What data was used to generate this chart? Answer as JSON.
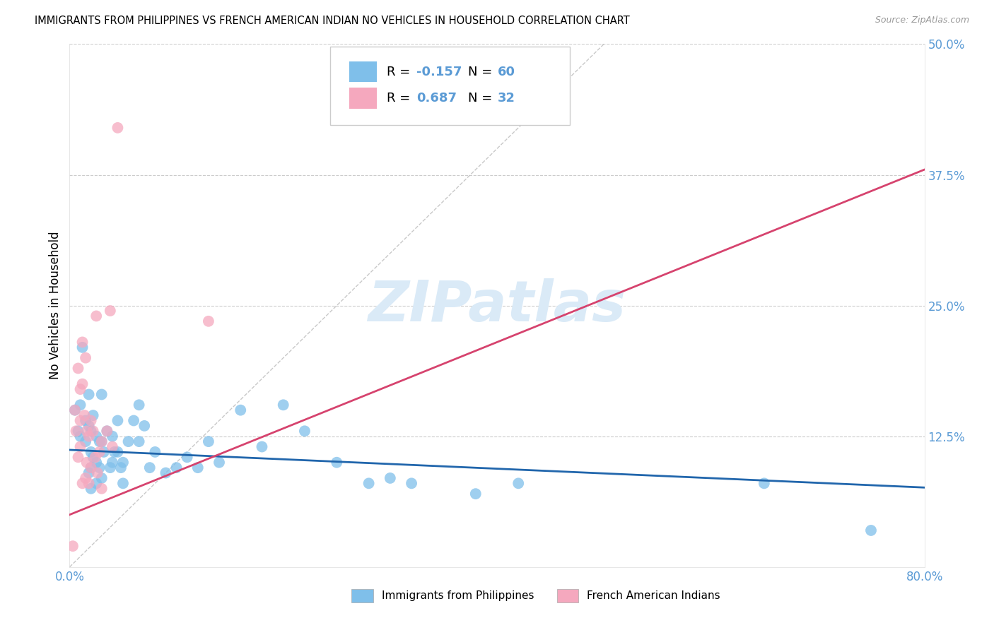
{
  "title": "IMMIGRANTS FROM PHILIPPINES VS FRENCH AMERICAN INDIAN NO VEHICLES IN HOUSEHOLD CORRELATION CHART",
  "source": "Source: ZipAtlas.com",
  "ylabel": "No Vehicles in Household",
  "xlim": [
    0,
    0.8
  ],
  "ylim": [
    0,
    0.5
  ],
  "xticks": [
    0.0,
    0.2,
    0.4,
    0.6,
    0.8
  ],
  "xticklabels": [
    "0.0%",
    "",
    "",
    "",
    "80.0%"
  ],
  "yticks": [
    0.0,
    0.125,
    0.25,
    0.375,
    0.5
  ],
  "yticklabels": [
    "",
    "12.5%",
    "25.0%",
    "37.5%",
    "50.0%"
  ],
  "blue_color": "#7fbfea",
  "pink_color": "#f5a8be",
  "blue_line_color": "#2166ac",
  "pink_line_color": "#d6436e",
  "axis_color": "#5b9bd5",
  "watermark": "ZIPatlas",
  "watermark_color": "#daeaf7",
  "grid_color": "#cccccc",
  "blue_scatter_x": [
    0.005,
    0.008,
    0.01,
    0.01,
    0.012,
    0.015,
    0.015,
    0.018,
    0.018,
    0.018,
    0.02,
    0.02,
    0.02,
    0.02,
    0.022,
    0.022,
    0.025,
    0.025,
    0.025,
    0.028,
    0.028,
    0.03,
    0.03,
    0.03,
    0.032,
    0.035,
    0.038,
    0.04,
    0.04,
    0.042,
    0.045,
    0.045,
    0.048,
    0.05,
    0.05,
    0.055,
    0.06,
    0.065,
    0.065,
    0.07,
    0.075,
    0.08,
    0.09,
    0.1,
    0.11,
    0.12,
    0.13,
    0.14,
    0.16,
    0.18,
    0.2,
    0.22,
    0.25,
    0.28,
    0.3,
    0.32,
    0.38,
    0.42,
    0.65,
    0.75
  ],
  "blue_scatter_y": [
    0.15,
    0.13,
    0.155,
    0.125,
    0.21,
    0.14,
    0.12,
    0.165,
    0.135,
    0.09,
    0.13,
    0.11,
    0.095,
    0.075,
    0.145,
    0.105,
    0.125,
    0.1,
    0.08,
    0.12,
    0.095,
    0.165,
    0.12,
    0.085,
    0.11,
    0.13,
    0.095,
    0.125,
    0.1,
    0.11,
    0.14,
    0.11,
    0.095,
    0.1,
    0.08,
    0.12,
    0.14,
    0.155,
    0.12,
    0.135,
    0.095,
    0.11,
    0.09,
    0.095,
    0.105,
    0.095,
    0.12,
    0.1,
    0.15,
    0.115,
    0.155,
    0.13,
    0.1,
    0.08,
    0.085,
    0.08,
    0.07,
    0.08,
    0.08,
    0.035
  ],
  "pink_scatter_x": [
    0.003,
    0.005,
    0.006,
    0.008,
    0.008,
    0.01,
    0.01,
    0.01,
    0.012,
    0.012,
    0.012,
    0.014,
    0.015,
    0.015,
    0.016,
    0.016,
    0.018,
    0.018,
    0.02,
    0.02,
    0.022,
    0.024,
    0.025,
    0.026,
    0.028,
    0.03,
    0.03,
    0.035,
    0.038,
    0.04,
    0.045,
    0.13
  ],
  "pink_scatter_y": [
    0.02,
    0.15,
    0.13,
    0.19,
    0.105,
    0.17,
    0.14,
    0.115,
    0.215,
    0.175,
    0.08,
    0.145,
    0.2,
    0.085,
    0.13,
    0.1,
    0.125,
    0.08,
    0.14,
    0.095,
    0.13,
    0.105,
    0.24,
    0.09,
    0.11,
    0.12,
    0.075,
    0.13,
    0.245,
    0.115,
    0.42,
    0.235
  ],
  "blue_trend_x": [
    0.0,
    0.8
  ],
  "blue_trend_y": [
    0.112,
    0.076
  ],
  "pink_trend_x": [
    0.0,
    0.8
  ],
  "pink_trend_y": [
    0.05,
    0.38
  ],
  "diag_line_x": [
    0.0,
    0.5
  ],
  "diag_line_y": [
    0.0,
    0.5
  ]
}
